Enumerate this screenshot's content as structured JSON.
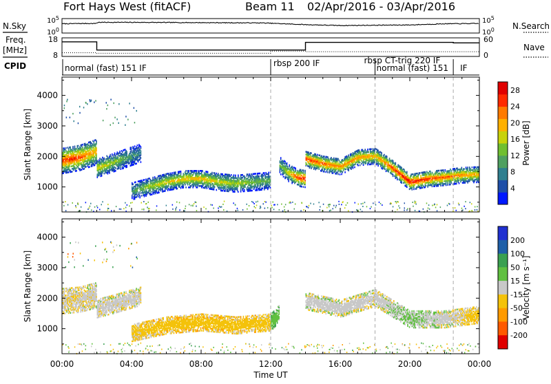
{
  "header": {
    "station": "Fort Hays West (fitACF)",
    "beam": "Beam 11",
    "date_range": "02/Apr/2016 - 03/Apr/2016"
  },
  "side_labels": {
    "nsky": "N.Sky",
    "nsearch": "N.Search",
    "freq_line1": "Freq.",
    "freq_line2": "[MHz]",
    "nave": "Nave",
    "cpid": "CPID"
  },
  "chart_data": [
    {
      "panel": "noise",
      "type": "line",
      "y_left_ticks": [
        "10^5",
        "10^0"
      ],
      "y_right_ticks": [
        "10^5",
        "10^0"
      ],
      "series": [
        {
          "name": "N.Sky",
          "x": [
            0,
            1,
            1.9,
            2.1,
            4,
            8,
            11.5,
            14,
            16,
            20,
            22,
            24
          ],
          "values": [
            3.2,
            3.3,
            3.3,
            3.7,
            3.7,
            3.6,
            3.5,
            2.9,
            2.6,
            2.8,
            3.2,
            3.3
          ]
        },
        {
          "name": "N.Search",
          "x": [
            0,
            24
          ],
          "values": [
            0,
            0
          ]
        }
      ]
    },
    {
      "panel": "frequency",
      "type": "line",
      "y_left_ticks": [
        8,
        18
      ],
      "y_right_ticks": [
        0,
        60
      ],
      "series": [
        {
          "name": "Freq.",
          "x": [
            0,
            2.0,
            2.0,
            14.0,
            14.0,
            22.5,
            22.5,
            24
          ],
          "values": [
            17,
            17,
            10.8,
            10.8,
            16.6,
            16.6,
            16.2,
            16.2
          ]
        },
        {
          "name": "Nave",
          "x": [
            0,
            2.0,
            2.0,
            12.0,
            12.0,
            14.0,
            14.0,
            24
          ],
          "values": [
            14,
            14,
            12,
            12,
            20,
            20,
            18,
            18
          ]
        }
      ]
    },
    {
      "panel": "cpid",
      "type": "table",
      "segments": [
        {
          "label": "normal (fast) 151 IF",
          "start": 0,
          "end": 12.0
        },
        {
          "label": "rbsp 200 IF",
          "start": 12.0,
          "end": 18.0
        },
        {
          "label": "rbsp CT-trig 220 IF",
          "start": 18.0,
          "end": 22.5
        },
        {
          "label": "normal (fast) 151",
          "start": 18.0,
          "end": 22.5
        },
        {
          "label": "IF",
          "start": 22.5,
          "end": 24
        }
      ]
    },
    {
      "panel": "power",
      "type": "heatmap",
      "ylabel": "Slant Range [km]",
      "yticks": [
        1000,
        2000,
        3000,
        4000
      ],
      "ylim": [
        180,
        4600
      ],
      "colorbar": {
        "label": "Power [dB]",
        "ticks": [
          4,
          8,
          12,
          16,
          20,
          24,
          28
        ],
        "range": [
          0,
          30
        ]
      },
      "bands": [
        {
          "x": [
            0,
            0.5,
            1.0,
            1.5,
            2.0
          ],
          "range_center": [
            1850,
            1900,
            1950,
            2050,
            2150
          ],
          "width": 420,
          "peak_db": [
            25,
            27,
            25,
            22,
            20
          ]
        },
        {
          "x": [
            2.0,
            2.5,
            3.0,
            3.5,
            4.0,
            4.5
          ],
          "range_center": [
            1600,
            1700,
            1800,
            1900,
            2000,
            2100
          ],
          "width": 300,
          "peak_db": [
            18,
            17,
            15,
            12,
            10,
            8
          ]
        },
        {
          "x": [
            4.0,
            5.0,
            6.0,
            7.0,
            8.0,
            9.0,
            10.0,
            11.0,
            12.0
          ],
          "range_center": [
            850,
            1000,
            1150,
            1250,
            1250,
            1150,
            1100,
            1150,
            1200
          ],
          "width": 280,
          "peak_db": [
            10,
            16,
            18,
            19,
            20,
            18,
            16,
            14,
            12
          ]
        },
        {
          "x": [
            12.5,
            13.0,
            13.5,
            14.0
          ],
          "range_center": [
            1700,
            1450,
            1300,
            1250
          ],
          "width": 280,
          "peak_db": [
            12,
            18,
            26,
            28
          ]
        },
        {
          "x": [
            14.0,
            15.0,
            16.0,
            17.0,
            18.0,
            19.0,
            20.0,
            21.0,
            22.0,
            23.0,
            24.0
          ],
          "range_center": [
            1900,
            1750,
            1650,
            1950,
            2000,
            1600,
            1150,
            1250,
            1300,
            1380,
            1400
          ],
          "width": 260,
          "peak_db": [
            26,
            24,
            22,
            22,
            20,
            26,
            28,
            26,
            24,
            22,
            20
          ]
        }
      ]
    },
    {
      "panel": "velocity",
      "type": "heatmap",
      "ylabel": "Slant Range [km]",
      "xlabel": "Time UT",
      "xticks": [
        "00:00",
        "04:00",
        "08:00",
        "12:00",
        "16:00",
        "20:00",
        "00:00"
      ],
      "yticks": [
        1000,
        2000,
        3000,
        4000
      ],
      "ylim": [
        180,
        4600
      ],
      "colorbar": {
        "label": "Velocity [m s⁻¹]",
        "ticks": [
          200,
          100,
          50,
          15,
          -15,
          -50,
          -100,
          -200
        ]
      },
      "bands": [
        {
          "x": [
            0,
            1.0,
            2.0
          ],
          "range_center": [
            1900,
            1950,
            2100
          ],
          "width": 420,
          "velocity": [
            -10,
            -10,
            -5
          ]
        },
        {
          "x": [
            2.0,
            3.0,
            4.5
          ],
          "range_center": [
            1650,
            1800,
            2050
          ],
          "width": 300,
          "velocity": [
            -5,
            -5,
            -5
          ]
        },
        {
          "x": [
            4.0,
            6.0,
            8.0,
            10.0,
            12.0
          ],
          "range_center": [
            850,
            1100,
            1200,
            1100,
            1200
          ],
          "width": 280,
          "velocity": [
            -20,
            -30,
            -35,
            -30,
            -25
          ]
        },
        {
          "x": [
            12.0,
            12.5
          ],
          "range_center": [
            1200,
            1500
          ],
          "width": 280,
          "velocity": [
            40,
            30
          ]
        },
        {
          "x": [
            14.0,
            16.0,
            18.0,
            20.0,
            22.0,
            24.0
          ],
          "range_center": [
            1900,
            1650,
            2000,
            1300,
            1300,
            1450
          ],
          "width": 280,
          "velocity": [
            0,
            0,
            -5,
            20,
            0,
            -30
          ]
        }
      ]
    }
  ],
  "colors": {
    "power_scale": [
      "#0018ff",
      "#1f4fa8",
      "#2f7f8f",
      "#4fa060",
      "#70bf30",
      "#c8d20a",
      "#ffb000",
      "#ff7a00",
      "#ff2a00",
      "#e00000"
    ],
    "velocity_scale": [
      "#e00000",
      "#ff5a00",
      "#ff9a00",
      "#f4c20a",
      "#c8c8c8",
      "#60c040",
      "#3aa050",
      "#1f5fa8",
      "#2030d0"
    ]
  }
}
